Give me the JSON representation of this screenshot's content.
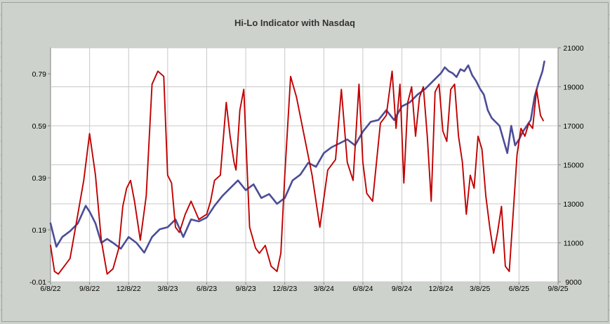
{
  "chart_data": {
    "type": "line",
    "title": "Hi-Lo Indicator with Nasdaq",
    "xlabel": "",
    "ylabel": "",
    "grid": true,
    "legend": "none",
    "x_ticks": [
      "6/8/22",
      "9/8/22",
      "12/8/22",
      "3/8/23",
      "6/8/23",
      "9/8/23",
      "12/8/23",
      "3/8/24",
      "6/8/24",
      "9/8/24",
      "12/8/24",
      "3/8/25",
      "6/8/25",
      "9/8/25"
    ],
    "x_range": [
      "6/8/22",
      "9/8/25"
    ],
    "y_left": {
      "ticks": [
        "-0.01",
        "0.19",
        "0.39",
        "0.59",
        "0.79"
      ],
      "range": [
        -0.01,
        0.89
      ]
    },
    "y_right": {
      "ticks": [
        "9000",
        "11000",
        "13000",
        "15000",
        "17000",
        "19000",
        "21000"
      ],
      "range": [
        9000,
        21000
      ]
    },
    "colors": {
      "series_hilo": "#c00000",
      "series_nasdaq": "#4b4d97",
      "plot_bg": "#ffffff",
      "grid": "#c8c8c8",
      "chart_bg": "#ced2cc"
    },
    "series": [
      {
        "axis": "left",
        "x": [
          0,
          0.1,
          0.2,
          0.35,
          0.5,
          0.7,
          0.85,
          1.0,
          1.15,
          1.3,
          1.45,
          1.6,
          1.75,
          1.85,
          1.95,
          2.05,
          2.15,
          2.3,
          2.45,
          2.6,
          2.75,
          2.9,
          3.0,
          3.1,
          3.2,
          3.3,
          3.45,
          3.6,
          3.8,
          4.0,
          4.1,
          4.2,
          4.35,
          4.5,
          4.6,
          4.7,
          4.75,
          4.85,
          4.95,
          5.0,
          5.1,
          5.25,
          5.35,
          5.5,
          5.65,
          5.8,
          5.9,
          6.0,
          6.15,
          6.3,
          6.5,
          6.7,
          6.9,
          7.1,
          7.3,
          7.45,
          7.6,
          7.75,
          7.9,
          8.0,
          8.1,
          8.25,
          8.45,
          8.6,
          8.75,
          8.85,
          8.95,
          9.05,
          9.15,
          9.25,
          9.35,
          9.45,
          9.55,
          9.65,
          9.75,
          9.85,
          9.95,
          10.05,
          10.15,
          10.25,
          10.35,
          10.45,
          10.55,
          10.65,
          10.75,
          10.85,
          10.95,
          11.05,
          11.15,
          11.25,
          11.35,
          11.45,
          11.55,
          11.65,
          11.75,
          11.85,
          11.95,
          12.05,
          12.15,
          12.25,
          12.35,
          12.45,
          12.55,
          12.62
        ],
        "values": [
          0.13,
          0.03,
          0.02,
          0.05,
          0.08,
          0.25,
          0.38,
          0.56,
          0.4,
          0.15,
          0.02,
          0.04,
          0.12,
          0.28,
          0.35,
          0.38,
          0.3,
          0.15,
          0.32,
          0.75,
          0.8,
          0.78,
          0.4,
          0.37,
          0.2,
          0.18,
          0.25,
          0.3,
          0.23,
          0.25,
          0.3,
          0.38,
          0.4,
          0.68,
          0.55,
          0.45,
          0.42,
          0.65,
          0.73,
          0.55,
          0.2,
          0.12,
          0.1,
          0.13,
          0.05,
          0.03,
          0.1,
          0.4,
          0.78,
          0.7,
          0.55,
          0.4,
          0.2,
          0.42,
          0.46,
          0.73,
          0.45,
          0.38,
          0.75,
          0.45,
          0.33,
          0.3,
          0.6,
          0.63,
          0.8,
          0.58,
          0.75,
          0.37,
          0.68,
          0.74,
          0.55,
          0.7,
          0.74,
          0.55,
          0.3,
          0.72,
          0.75,
          0.57,
          0.53,
          0.73,
          0.75,
          0.55,
          0.45,
          0.25,
          0.4,
          0.35,
          0.55,
          0.5,
          0.32,
          0.2,
          0.1,
          0.18,
          0.28,
          0.05,
          0.03,
          0.25,
          0.48,
          0.58,
          0.55,
          0.6,
          0.58,
          0.73,
          0.63,
          0.61
        ]
      },
      {
        "axis": "right",
        "x": [
          0,
          0.15,
          0.3,
          0.5,
          0.7,
          0.9,
          1.0,
          1.15,
          1.3,
          1.45,
          1.6,
          1.8,
          2.0,
          2.2,
          2.4,
          2.6,
          2.8,
          3.0,
          3.2,
          3.4,
          3.6,
          3.8,
          4.0,
          4.2,
          4.4,
          4.6,
          4.8,
          5.0,
          5.2,
          5.4,
          5.6,
          5.8,
          6.0,
          6.2,
          6.4,
          6.6,
          6.8,
          7.0,
          7.2,
          7.4,
          7.6,
          7.8,
          8.0,
          8.2,
          8.4,
          8.6,
          8.8,
          9.0,
          9.2,
          9.4,
          9.6,
          9.8,
          10.0,
          10.1,
          10.2,
          10.3,
          10.4,
          10.5,
          10.6,
          10.7,
          10.8,
          10.9,
          11.0,
          11.1,
          11.2,
          11.3,
          11.4,
          11.5,
          11.6,
          11.7,
          11.8,
          11.9,
          12.0,
          12.1,
          12.2,
          12.3,
          12.4,
          12.5,
          12.6,
          12.65
        ],
        "values": [
          12000,
          10800,
          11300,
          11600,
          12000,
          12900,
          12600,
          12000,
          11000,
          11200,
          11000,
          10700,
          11300,
          11000,
          10500,
          11300,
          11700,
          11800,
          12200,
          11300,
          12200,
          12100,
          12300,
          12900,
          13400,
          13800,
          14200,
          13700,
          14000,
          13300,
          13500,
          13000,
          13300,
          14200,
          14500,
          15100,
          14900,
          15600,
          15900,
          16100,
          16300,
          16000,
          16700,
          17200,
          17300,
          17800,
          17300,
          18000,
          18200,
          18600,
          18900,
          19300,
          19700,
          20000,
          19800,
          19700,
          19500,
          19900,
          19800,
          20100,
          19600,
          19300,
          18900,
          18600,
          17800,
          17400,
          17200,
          17000,
          16300,
          15600,
          17000,
          16000,
          16300,
          16700,
          17000,
          17300,
          18500,
          19200,
          19800,
          20300
        ]
      }
    ]
  }
}
